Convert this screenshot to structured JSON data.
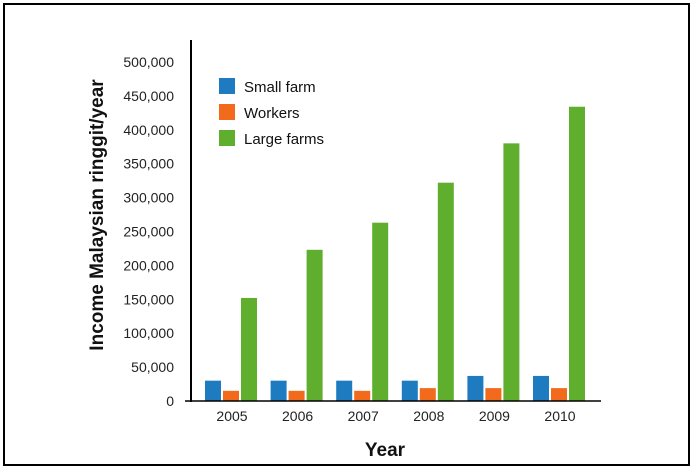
{
  "chart_data": {
    "type": "bar",
    "title": "",
    "xlabel": "Year",
    "ylabel": "Income Malaysian ringgit/year",
    "categories": [
      "2005",
      "2006",
      "2007",
      "2008",
      "2009",
      "2010"
    ],
    "ylim": [
      0,
      500000
    ],
    "yticks": [
      "0",
      "50,000",
      "100,000",
      "150,000",
      "200,000",
      "250,000",
      "300,000",
      "350,000",
      "400,000",
      "450,000",
      "500,000"
    ],
    "grid": false,
    "legend_position": "top-left",
    "series": [
      {
        "name": "Small farm",
        "color": "#1f7bc0",
        "values": [
          30000,
          30000,
          30000,
          30000,
          37000,
          37000
        ]
      },
      {
        "name": "Workers",
        "color": "#f26a1b",
        "values": [
          15000,
          15000,
          15000,
          19000,
          19000,
          19000
        ]
      },
      {
        "name": "Large farms",
        "color": "#5fae2e",
        "values": [
          152000,
          223000,
          263000,
          322000,
          380000,
          434000
        ]
      }
    ]
  }
}
